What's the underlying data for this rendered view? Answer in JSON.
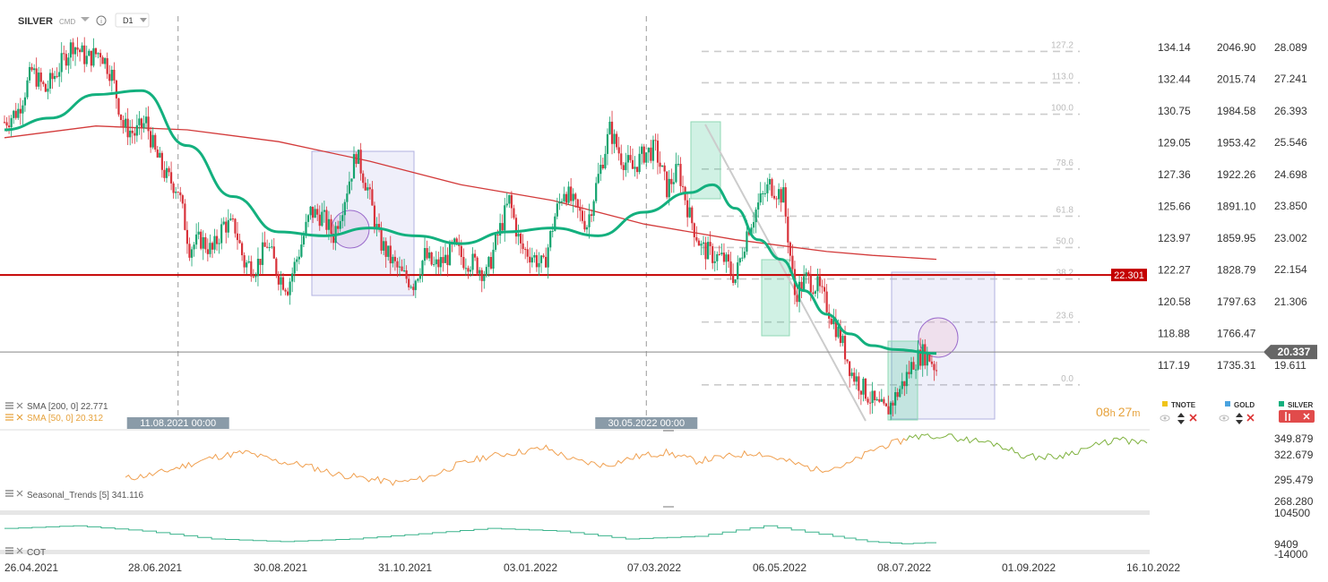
{
  "header": {
    "symbol": "SILVER",
    "instrument_type": "CMD",
    "interval": "D1"
  },
  "chart_data": {
    "type": "line",
    "subtype": "candlestick",
    "title": "SILVER",
    "x_ticks": [
      "26.04.2021",
      "28.06.2021",
      "30.08.2021",
      "31.10.2021",
      "03.01.2022",
      "07.03.2022",
      "06.05.2022",
      "08.07.2022",
      "01.09.2022",
      "16.10.2022"
    ],
    "y_axis_right": [
      "28.089",
      "27.241",
      "26.393",
      "25.546",
      "24.698",
      "23.850",
      "23.002",
      "22.154",
      "21.306",
      "19.611"
    ],
    "y_axis_tnote": [
      "134.14",
      "132.44",
      "130.75",
      "129.05",
      "127.36",
      "125.66",
      "123.97",
      "122.27",
      "120.58",
      "118.88",
      "117.19"
    ],
    "y_axis_gold": [
      "2046.90",
      "2015.74",
      "1984.58",
      "1953.42",
      "1922.26",
      "1891.10",
      "1859.95",
      "1828.79",
      "1797.63",
      "1766.47",
      "1735.31"
    ],
    "ylim": [
      18.4,
      28.9
    ],
    "series": [
      {
        "name": "SMA [200, 0] 22.771",
        "value": 22.771,
        "color": "#d33b3b"
      },
      {
        "name": "SMA [50, 0] 20.312",
        "value": 20.312,
        "color": "#13b07e"
      }
    ],
    "close_path": [
      [
        0,
        26.2
      ],
      [
        6,
        26.5
      ],
      [
        12,
        27.5
      ],
      [
        18,
        27.0
      ],
      [
        24,
        27.6
      ],
      [
        30,
        28.2
      ],
      [
        36,
        27.8
      ],
      [
        42,
        28.0
      ],
      [
        47,
        27.4
      ],
      [
        52,
        26.1
      ],
      [
        57,
        25.9
      ],
      [
        62,
        26.2
      ],
      [
        66,
        25.4
      ],
      [
        71,
        24.8
      ],
      [
        76,
        24.5
      ],
      [
        81,
        23.0
      ],
      [
        86,
        23.2
      ],
      [
        91,
        22.9
      ],
      [
        96,
        23.6
      ],
      [
        101,
        23.5
      ],
      [
        105,
        22.6
      ],
      [
        110,
        22.5
      ],
      [
        115,
        23.1
      ],
      [
        120,
        22.3
      ],
      [
        124,
        22.0
      ],
      [
        129,
        22.9
      ],
      [
        134,
        23.9
      ],
      [
        139,
        23.8
      ],
      [
        144,
        23.3
      ],
      [
        149,
        24.3
      ],
      [
        154,
        25.4
      ],
      [
        159,
        24.5
      ],
      [
        164,
        23.2
      ],
      [
        169,
        22.7
      ],
      [
        174,
        22.3
      ],
      [
        179,
        22.1
      ],
      [
        184,
        22.8
      ],
      [
        188,
        22.5
      ],
      [
        193,
        22.7
      ],
      [
        197,
        23.0
      ],
      [
        201,
        22.7
      ],
      [
        206,
        22.6
      ],
      [
        211,
        22.3
      ],
      [
        216,
        23.3
      ],
      [
        221,
        24.2
      ],
      [
        226,
        23.0
      ],
      [
        231,
        22.8
      ],
      [
        236,
        22.5
      ],
      [
        241,
        23.8
      ],
      [
        245,
        24.5
      ],
      [
        250,
        24.0
      ],
      [
        255,
        23.6
      ],
      [
        260,
        24.8
      ],
      [
        265,
        26.0
      ],
      [
        270,
        25.3
      ],
      [
        275,
        25.0
      ],
      [
        280,
        25.4
      ],
      [
        285,
        25.5
      ],
      [
        290,
        24.5
      ],
      [
        295,
        25.0
      ],
      [
        300,
        23.8
      ],
      [
        305,
        23.0
      ],
      [
        310,
        22.8
      ],
      [
        315,
        22.7
      ],
      [
        320,
        22.2
      ],
      [
        325,
        23.4
      ],
      [
        330,
        24.1
      ],
      [
        335,
        24.6
      ],
      [
        341,
        24.3
      ],
      [
        346,
        21.8
      ],
      [
        351,
        22.2
      ],
      [
        356,
        22.0
      ],
      [
        361,
        21.4
      ],
      [
        366,
        20.7
      ],
      [
        371,
        19.8
      ],
      [
        376,
        19.4
      ],
      [
        381,
        19.0
      ],
      [
        386,
        18.8
      ],
      [
        390,
        19.2
      ],
      [
        394,
        19.6
      ],
      [
        398,
        20.1
      ],
      [
        402,
        20.3
      ],
      [
        405,
        20.2
      ],
      [
        408,
        19.9
      ]
    ],
    "sma50_path": [
      [
        0,
        26.0
      ],
      [
        20,
        26.3
      ],
      [
        40,
        26.9
      ],
      [
        60,
        27.0
      ],
      [
        80,
        25.6
      ],
      [
        100,
        24.3
      ],
      [
        120,
        23.4
      ],
      [
        140,
        23.3
      ],
      [
        160,
        23.5
      ],
      [
        180,
        23.3
      ],
      [
        200,
        23.1
      ],
      [
        220,
        23.4
      ],
      [
        240,
        23.5
      ],
      [
        260,
        23.3
      ],
      [
        280,
        23.9
      ],
      [
        300,
        24.4
      ],
      [
        310,
        24.6
      ],
      [
        320,
        24.0
      ],
      [
        330,
        23.2
      ],
      [
        340,
        22.7
      ],
      [
        350,
        21.9
      ],
      [
        360,
        21.3
      ],
      [
        370,
        20.8
      ],
      [
        380,
        20.5
      ],
      [
        390,
        20.4
      ],
      [
        408,
        20.3
      ]
    ],
    "sma200_path": [
      [
        0,
        25.8
      ],
      [
        40,
        26.1
      ],
      [
        80,
        26.0
      ],
      [
        120,
        25.7
      ],
      [
        160,
        25.2
      ],
      [
        200,
        24.6
      ],
      [
        240,
        24.2
      ],
      [
        280,
        23.6
      ],
      [
        320,
        23.2
      ],
      [
        360,
        22.9
      ],
      [
        380,
        22.8
      ],
      [
        408,
        22.7
      ]
    ],
    "fib_levels": [
      {
        "label": "127.2",
        "value": 28.0
      },
      {
        "label": "113.0",
        "value": 27.2
      },
      {
        "label": "100.0",
        "value": 26.4
      },
      {
        "label": "78.6",
        "value": 25.0
      },
      {
        "label": "61.8",
        "value": 23.8
      },
      {
        "label": "50.0",
        "value": 23.0
      },
      {
        "label": "38.2",
        "value": 22.2
      },
      {
        "label": "23.6",
        "value": 21.1
      },
      {
        "label": "0.0",
        "value": 19.5
      }
    ],
    "vertical_markers": [
      {
        "label": "11.08.2021 00:00",
        "index": 76
      },
      {
        "label": "30.05.2022 00:00",
        "index": 281
      }
    ],
    "support_line": {
      "label": "22.301",
      "value": 22.301,
      "color": "#c40000"
    },
    "current_price": {
      "label": "20.337",
      "value": 20.337
    },
    "countdown": {
      "hours": "08",
      "hours_unit": "h",
      "minutes": "27",
      "minutes_unit": "m"
    },
    "symbols": [
      {
        "name": "TNOTE",
        "color": "#f0c419"
      },
      {
        "name": "GOLD",
        "color": "#4aa3df"
      },
      {
        "name": "SILVER",
        "color": "#13b07e"
      }
    ],
    "seasonal": {
      "label": "Seasonal_Trends [5] 341.116",
      "y_axis": [
        "349.879",
        "322.679",
        "295.479",
        "268.280"
      ],
      "orange_path": [
        [
          0,
          300
        ],
        [
          10,
          305
        ],
        [
          20,
          315
        ],
        [
          30,
          325
        ],
        [
          40,
          330
        ],
        [
          50,
          320
        ],
        [
          60,
          315
        ],
        [
          70,
          305
        ],
        [
          80,
          300
        ],
        [
          90,
          295
        ],
        [
          100,
          300
        ],
        [
          110,
          315
        ],
        [
          120,
          325
        ],
        [
          130,
          330
        ],
        [
          140,
          335
        ],
        [
          150,
          320
        ],
        [
          160,
          315
        ],
        [
          170,
          325
        ],
        [
          180,
          330
        ],
        [
          190,
          320
        ],
        [
          200,
          325
        ],
        [
          210,
          330
        ],
        [
          220,
          320
        ],
        [
          230,
          310
        ],
        [
          240,
          315
        ],
        [
          250,
          335
        ],
        [
          260,
          345
        ]
      ],
      "green_path": [
        [
          260,
          345
        ],
        [
          270,
          350
        ],
        [
          280,
          345
        ],
        [
          290,
          340
        ],
        [
          300,
          325
        ],
        [
          310,
          325
        ],
        [
          320,
          335
        ],
        [
          330,
          345
        ],
        [
          340,
          340
        ]
      ]
    },
    "cot": {
      "label": "COT",
      "y_axis": [
        "104500",
        "9409",
        "-14000"
      ],
      "path": [
        [
          0,
          60000
        ],
        [
          20,
          70000
        ],
        [
          40,
          50000
        ],
        [
          60,
          20000
        ],
        [
          80,
          10000
        ],
        [
          100,
          20000
        ],
        [
          120,
          40000
        ],
        [
          140,
          60000
        ],
        [
          160,
          50000
        ],
        [
          180,
          20000
        ],
        [
          200,
          30000
        ],
        [
          220,
          70000
        ],
        [
          240,
          30000
        ],
        [
          250,
          10000
        ],
        [
          260,
          2000
        ],
        [
          270,
          8000
        ]
      ]
    }
  }
}
